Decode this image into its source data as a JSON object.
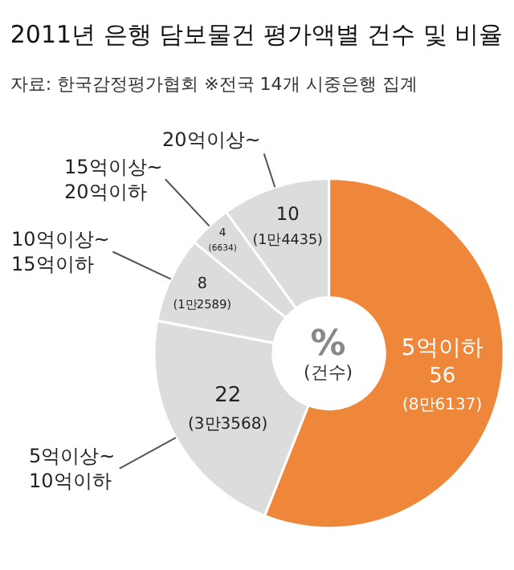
{
  "chart_data": {
    "type": "donut",
    "title": "2011년 은행 담보물건 평가액별 건수 및 비율",
    "subtitle": "자료: 한국감정평가협회 ※전국 14개 시중은행 집계",
    "categories": [
      "5억이하",
      "5억이상~\n10억이하",
      "10억이상~\n15억이하",
      "15억이상~\n20억이하",
      "20억이상~"
    ],
    "values": [
      56,
      22,
      8,
      4,
      10
    ],
    "colors": [
      "#ef873a",
      "#dcdcdc",
      "#dcdcdc",
      "#dcdcdc",
      "#dcdcdc"
    ],
    "value_labels": [
      "56\n(8만6137)",
      "22\n(3만3568)",
      "8\n(1만2589)",
      "4\n(6634)",
      "10\n(1만4435)"
    ],
    "annotations": [
      "%\n(건수)"
    ]
  }
}
